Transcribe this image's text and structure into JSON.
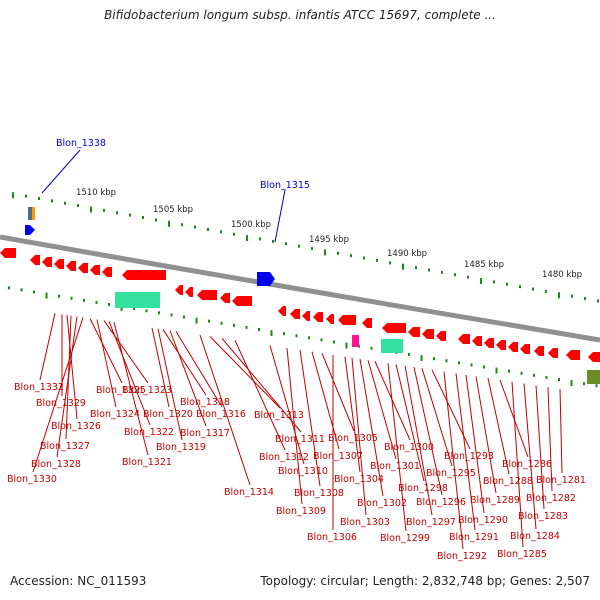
{
  "title": "Bifidobacterium longum subsp. infantis ATCC 15697, complete ...",
  "footer": {
    "accession": "Accession: NC_011593",
    "summary": "Topology: circular; Length: 2,832,748 bp; Genes: 2,507"
  },
  "scale_labels": [
    "1510 kbp",
    "1505 kbp",
    "1500 kbp",
    "1495 kbp",
    "1490 kbp",
    "1485 kbp",
    "1480 kbp"
  ],
  "blue_labels": [
    "Blon_1338",
    "Blon_1315"
  ],
  "gene_labels": [
    "Blon_1332",
    "Blon_1329",
    "Blon_1326",
    "Blon_1327",
    "Blon_1328",
    "Blon_1330",
    "Blon_1325",
    "Blon_1324",
    "Blon_1323",
    "Blon_1322",
    "Blon_1321",
    "Blon_1320",
    "Blon_1319",
    "Blon_1318",
    "Blon_1317",
    "Blon_1316",
    "Blon_1314",
    "Blon_1313",
    "Blon_1311",
    "Blon_1312",
    "Blon_1310",
    "Blon_1309",
    "Blon_1308",
    "Blon_1307",
    "Blon_1305",
    "Blon_1306",
    "Blon_1304",
    "Blon_1303",
    "Blon_1302",
    "Blon_1301",
    "Blon_1300",
    "Blon_1299",
    "Blon_1298",
    "Blon_1297",
    "Blon_1296",
    "Blon_1295",
    "Blon_1293",
    "Blon_1292",
    "Blon_1291",
    "Blon_1290",
    "Blon_1289",
    "Blon_1288",
    "Blon_1286",
    "Blon_1285",
    "Blon_1284",
    "Blon_1283",
    "Blon_1282",
    "Blon_1281"
  ],
  "colors": {
    "gene_red": "#ff0000",
    "gene_blue": "#0000ee",
    "gene_green": "#33e0a0",
    "gene_pink": "#ff1493",
    "gene_olive": "#6b8e23",
    "gene_orange": "#ff9900",
    "backbone": "#909090",
    "label_red": "#c00000",
    "label_blue": "#0000cc",
    "tick_green": "#1a8a1a"
  }
}
